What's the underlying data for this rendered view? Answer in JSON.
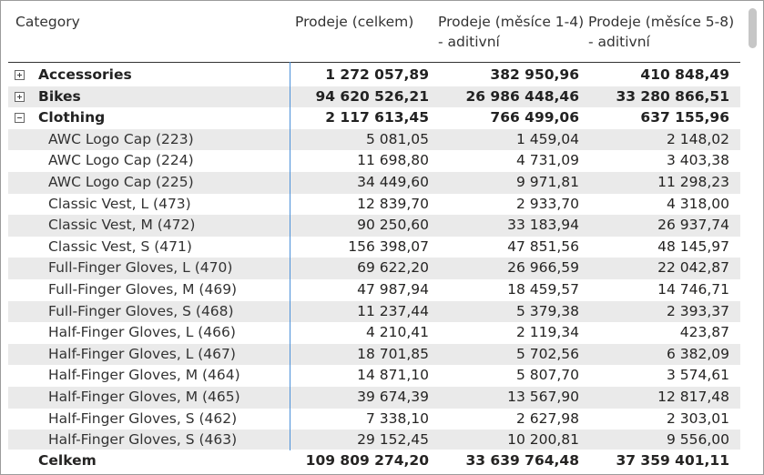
{
  "columns": {
    "category": "Category",
    "total_line1": "Prodeje (celkem)",
    "m14_line1": "Prodeje (měsíce 1-4)",
    "m14_line2": "- aditivní",
    "m58_line1": "Prodeje (měsíce 5-8)",
    "m58_line2": "- aditivní"
  },
  "rows": [
    {
      "name": "Accessories",
      "level": 0,
      "toggle": "plus",
      "total": "1 272 057,89",
      "m14": "382 950,96",
      "m58": "410 848,49"
    },
    {
      "name": "Bikes",
      "level": 0,
      "toggle": "plus",
      "total": "94 620 526,21",
      "m14": "26 986 448,46",
      "m58": "33 280 866,51"
    },
    {
      "name": "Clothing",
      "level": 0,
      "toggle": "minus",
      "total": "2 117 613,45",
      "m14": "766 499,06",
      "m58": "637 155,96"
    },
    {
      "name": "AWC Logo Cap (223)",
      "level": 1,
      "total": "5 081,05",
      "m14": "1 459,04",
      "m58": "2 148,02"
    },
    {
      "name": "AWC Logo Cap (224)",
      "level": 1,
      "total": "11 698,80",
      "m14": "4 731,09",
      "m58": "3 403,38"
    },
    {
      "name": "AWC Logo Cap (225)",
      "level": 1,
      "total": "34 449,60",
      "m14": "9 971,81",
      "m58": "11 298,23"
    },
    {
      "name": "Classic Vest, L (473)",
      "level": 1,
      "total": "12 839,70",
      "m14": "2 933,70",
      "m58": "4 318,00"
    },
    {
      "name": "Classic Vest, M (472)",
      "level": 1,
      "total": "90 250,60",
      "m14": "33 183,94",
      "m58": "26 937,74"
    },
    {
      "name": "Classic Vest, S (471)",
      "level": 1,
      "total": "156 398,07",
      "m14": "47 851,56",
      "m58": "48 145,97"
    },
    {
      "name": "Full-Finger Gloves, L (470)",
      "level": 1,
      "total": "69 622,20",
      "m14": "26 966,59",
      "m58": "22 042,87"
    },
    {
      "name": "Full-Finger Gloves, M (469)",
      "level": 1,
      "total": "47 987,94",
      "m14": "18 459,57",
      "m58": "14 746,71"
    },
    {
      "name": "Full-Finger Gloves, S (468)",
      "level": 1,
      "total": "11 237,44",
      "m14": "5 379,38",
      "m58": "2 393,37"
    },
    {
      "name": "Half-Finger Gloves, L (466)",
      "level": 1,
      "total": "4 210,41",
      "m14": "2 119,34",
      "m58": "423,87"
    },
    {
      "name": "Half-Finger Gloves, L (467)",
      "level": 1,
      "total": "18 701,85",
      "m14": "5 702,56",
      "m58": "6 382,09"
    },
    {
      "name": "Half-Finger Gloves, M (464)",
      "level": 1,
      "total": "14 871,10",
      "m14": "5 807,70",
      "m58": "3 574,61"
    },
    {
      "name": "Half-Finger Gloves, M (465)",
      "level": 1,
      "total": "39 674,39",
      "m14": "13 567,90",
      "m58": "12 817,48"
    },
    {
      "name": "Half-Finger Gloves, S (462)",
      "level": 1,
      "total": "7 338,10",
      "m14": "2 627,98",
      "m58": "2 303,01"
    },
    {
      "name": "Half-Finger Gloves, S (463)",
      "level": 1,
      "total": "29 152,45",
      "m14": "10 200,81",
      "m58": "9 556,00"
    }
  ],
  "totals": {
    "label": "Celkem",
    "total": "109 809 274,20",
    "m14": "33 639 764,48",
    "m58": "37 359 401,11"
  }
}
